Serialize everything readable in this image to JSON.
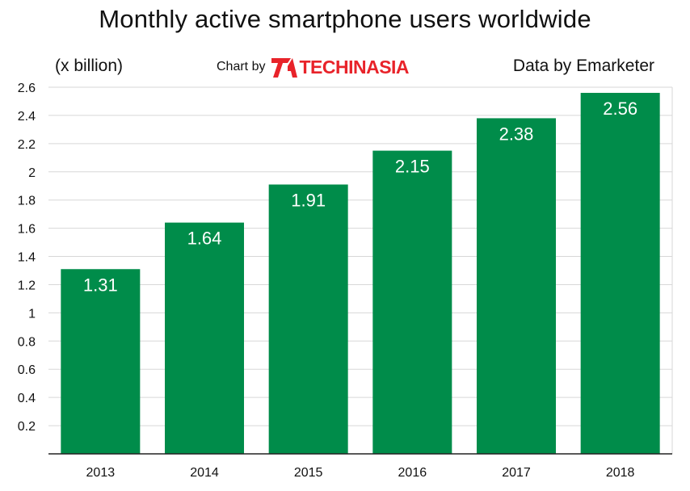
{
  "header": {
    "unit_label": "(x billion)",
    "credit_prefix": "Chart by",
    "brand_name": "TECHINASIA",
    "source": "Data by Emarketer"
  },
  "chart_data": {
    "type": "bar",
    "title": "Monthly active smartphone users worldwide",
    "categories": [
      "2013",
      "2014",
      "2015",
      "2016",
      "2017",
      "2018"
    ],
    "values": [
      1.31,
      1.64,
      1.91,
      2.15,
      2.38,
      2.56
    ],
    "value_labels": [
      "1.31",
      "1.64",
      "1.91",
      "2.15",
      "2.38",
      "2.56"
    ],
    "xlabel": "",
    "ylabel": "",
    "ylim": [
      0,
      2.6
    ],
    "y_ticks": [
      "0.2",
      "0.4",
      "0.6",
      "0.8",
      "1",
      "1.2",
      "1.4",
      "1.6",
      "1.8",
      "2",
      "2.2",
      "2.4",
      "2.6"
    ],
    "grid": true,
    "bar_color": "#008c4a",
    "brand_color": "#e8232a"
  }
}
